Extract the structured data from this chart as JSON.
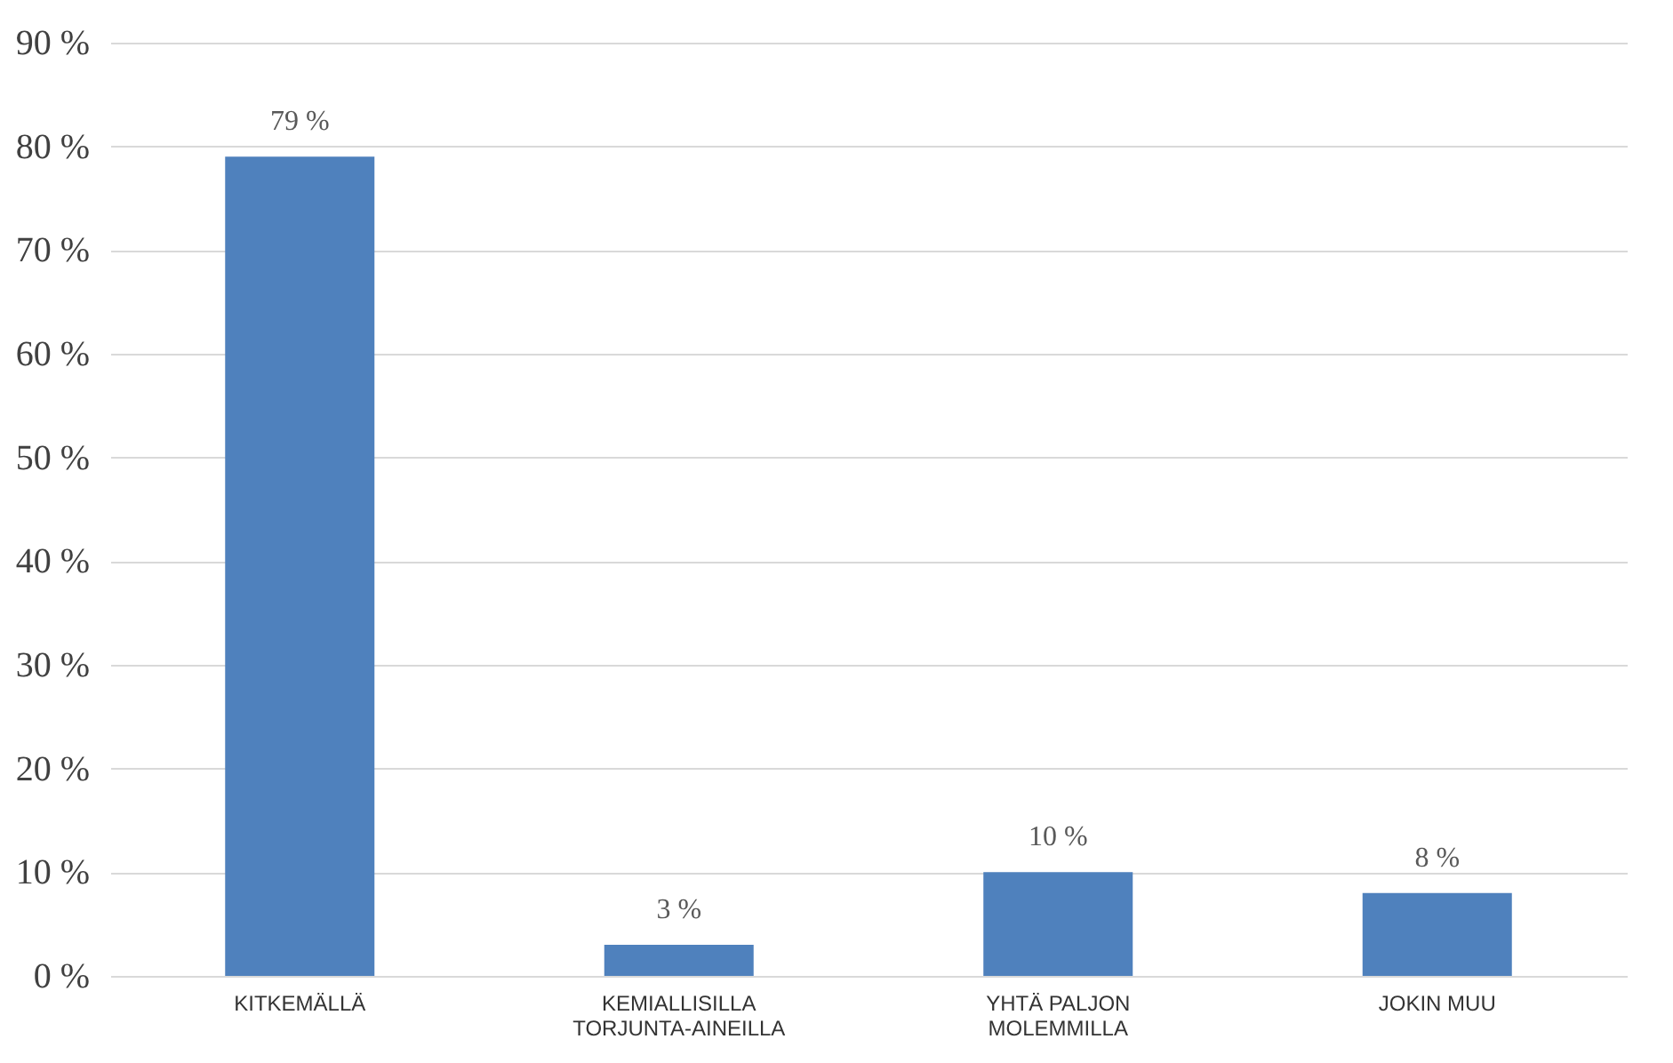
{
  "chart_data": {
    "type": "bar",
    "categories": [
      "KITKEMÄLLÄ",
      "KEMIALLISILLA\nTORJUNTA-AINEILLA",
      "YHTÄ  PALJON\nMOLEMMILLA",
      "JOKIN  MUU"
    ],
    "values": [
      79,
      3,
      10,
      8
    ],
    "value_labels": [
      "79 %",
      "3 %",
      "10 %",
      "8 %"
    ],
    "color": "#4f81bd",
    "ylim": [
      0,
      90
    ],
    "yticks": [
      {
        "value": 0,
        "label": "0 %"
      },
      {
        "value": 10,
        "label": "10 %"
      },
      {
        "value": 20,
        "label": "20 %"
      },
      {
        "value": 30,
        "label": "30 %"
      },
      {
        "value": 40,
        "label": "40 %"
      },
      {
        "value": 50,
        "label": "50 %"
      },
      {
        "value": 60,
        "label": "60 %"
      },
      {
        "value": 70,
        "label": "70 %"
      },
      {
        "value": 80,
        "label": "80 %"
      },
      {
        "value": 90,
        "label": "90 %"
      }
    ],
    "grid": "y"
  }
}
